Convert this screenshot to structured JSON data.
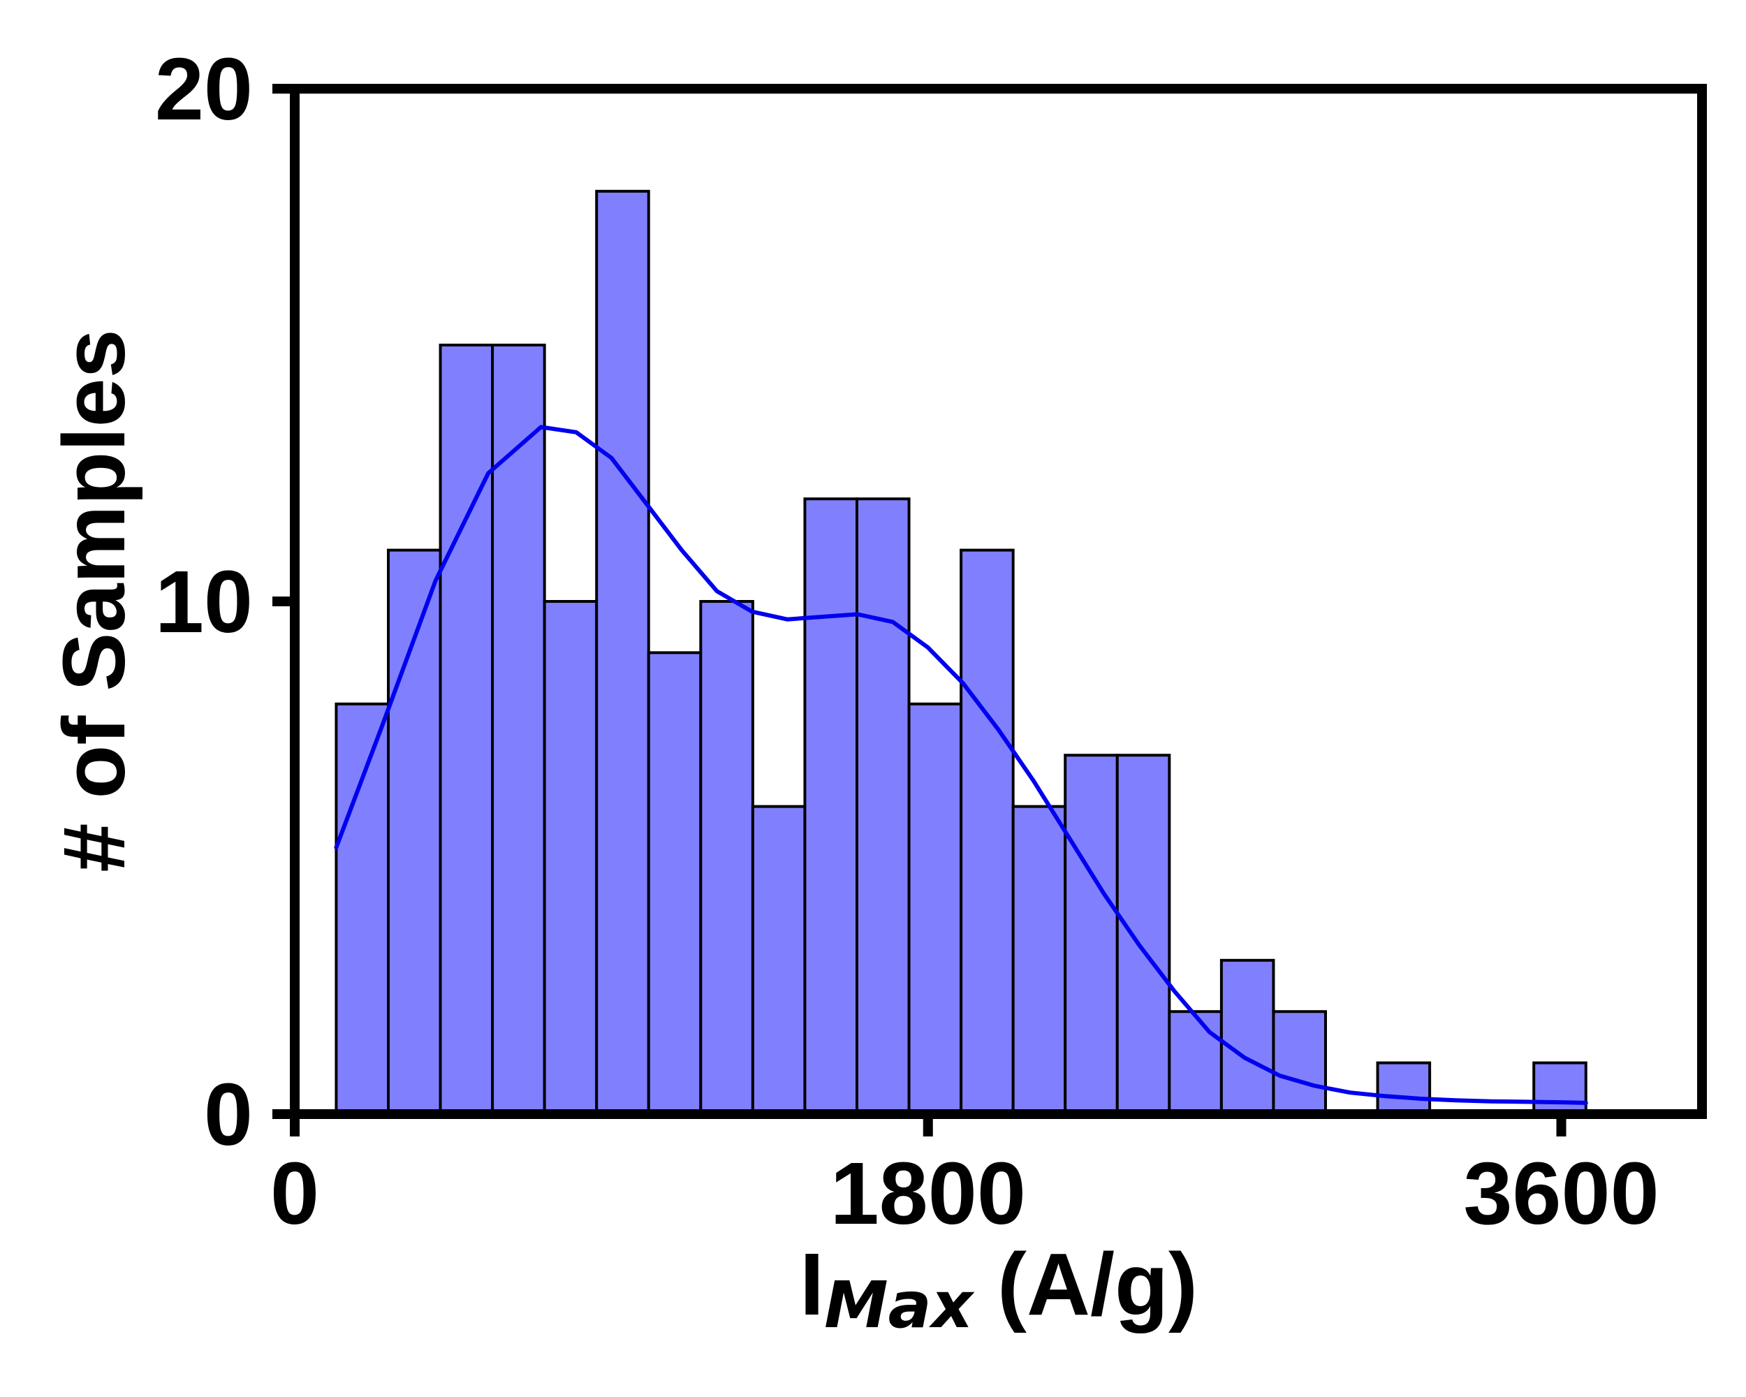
{
  "chart_data": {
    "type": "bar",
    "subtype": "histogram-with-kde",
    "title": "",
    "xlabel": "I",
    "xlabel_subscript": "Max",
    "xlabel_suffix": " (A/g)",
    "ylabel": "# of Samples",
    "xlim": [
      0,
      4000
    ],
    "ylim": [
      0,
      20
    ],
    "xticks": [
      0,
      1800,
      3600
    ],
    "yticks": [
      0,
      10,
      20
    ],
    "bin_edges": [
      118,
      266,
      414,
      562,
      710,
      858,
      1006,
      1154,
      1302,
      1450,
      1598,
      1746,
      1894,
      2042,
      2190,
      2338,
      2486,
      2634,
      2782,
      2930,
      3078,
      3226,
      3374,
      3522,
      3670
    ],
    "counts": [
      8,
      11,
      15,
      15,
      10,
      18,
      9,
      10,
      6,
      12,
      12,
      8,
      11,
      6,
      7,
      7,
      2,
      3,
      2,
      0,
      1,
      0,
      0,
      1
    ],
    "bar_color": "#8080ff",
    "bar_edge_color": "#000000",
    "kde": {
      "name": "KDE",
      "color": "#0000ee",
      "x": [
        118,
        250,
        400,
        550,
        700,
        800,
        900,
        1000,
        1100,
        1200,
        1300,
        1400,
        1500,
        1600,
        1700,
        1800,
        1900,
        2000,
        2100,
        2200,
        2300,
        2400,
        2500,
        2600,
        2700,
        2800,
        2900,
        3000,
        3100,
        3200,
        3300,
        3400,
        3500,
        3600,
        3670
      ],
      "y": [
        5.2,
        7.6,
        10.4,
        12.5,
        13.4,
        13.3,
        12.8,
        11.9,
        11.0,
        10.2,
        9.8,
        9.65,
        9.7,
        9.75,
        9.6,
        9.1,
        8.4,
        7.5,
        6.5,
        5.4,
        4.3,
        3.3,
        2.4,
        1.6,
        1.1,
        0.75,
        0.55,
        0.42,
        0.35,
        0.3,
        0.27,
        0.25,
        0.24,
        0.23,
        0.22
      ]
    }
  }
}
